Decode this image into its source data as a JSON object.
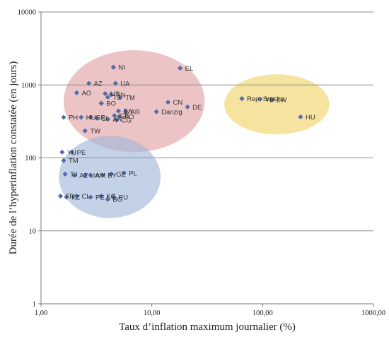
{
  "chart_data": {
    "type": "scatter",
    "title": "",
    "xlabel": "Taux d’inflation maximum journalier (%)",
    "ylabel": "Durée de l’hyperinflation constatée (en jours)",
    "x_scale": "log",
    "y_scale": "log",
    "xlim": [
      1,
      1000
    ],
    "ylim": [
      1,
      10000
    ],
    "x_ticks": [
      "1,00",
      "10,00",
      "100,00",
      "1000,00"
    ],
    "y_ticks": [
      "1",
      "10",
      "100",
      "1000",
      "10000"
    ],
    "grid": "horizontal",
    "legend": "none",
    "marker_color": "#4F6DA8",
    "clusters": [
      {
        "color": "#E0A0A3",
        "x_range": [
          1.6,
          30
        ],
        "y_range": [
          120,
          3000
        ]
      },
      {
        "color": "#F2D266",
        "x_range": [
          45,
          400
        ],
        "y_range": [
          210,
          1400
        ]
      },
      {
        "color": "#9FB6DA",
        "x_range": [
          1.45,
          12
        ],
        "y_range": [
          15,
          200
        ]
      }
    ],
    "points": [
      {
        "label": "NI",
        "x": 4.5,
        "y": 1750
      },
      {
        "label": "EL",
        "x": 18,
        "y": 1700
      },
      {
        "label": "AZ",
        "x": 2.7,
        "y": 1050
      },
      {
        "label": "UA",
        "x": 4.7,
        "y": 1050
      },
      {
        "label": "AO",
        "x": 2.1,
        "y": 780
      },
      {
        "label": "US",
        "x": 3.8,
        "y": 760
      },
      {
        "label": "SN",
        "x": 4.3,
        "y": 740
      },
      {
        "label": "TJ",
        "x": 4.0,
        "y": 680
      },
      {
        "label": "TM",
        "x": 5.2,
        "y": 670
      },
      {
        "label": "BO",
        "x": 3.5,
        "y": 560
      },
      {
        "label": "CN",
        "x": 14,
        "y": 580
      },
      {
        "label": "DE",
        "x": 21,
        "y": 500
      },
      {
        "label": "Danzig",
        "x": 11,
        "y": 430
      },
      {
        "label": "BA",
        "x": 5.0,
        "y": 440
      },
      {
        "label": "AR",
        "x": 5.8,
        "y": 430
      },
      {
        "label": "GE",
        "x": 4.6,
        "y": 380
      },
      {
        "label": "PO",
        "x": 5.1,
        "y": 370
      },
      {
        "label": "PH",
        "x": 1.6,
        "y": 360
      },
      {
        "label": "HU",
        "x": 2.3,
        "y": 360
      },
      {
        "label": "GR",
        "x": 2.8,
        "y": 360
      },
      {
        "label": "LI",
        "x": 3.2,
        "y": 350
      },
      {
        "label": "AR",
        "x": 4.0,
        "y": 340
      },
      {
        "label": "CG",
        "x": 4.8,
        "y": 330
      },
      {
        "label": "TW",
        "x": 2.5,
        "y": 235
      },
      {
        "label": "Rep. Srpska",
        "x": 65,
        "y": 650
      },
      {
        "label": "YU",
        "x": 95,
        "y": 640
      },
      {
        "label": "ZW",
        "x": 120,
        "y": 630
      },
      {
        "label": "HU",
        "x": 220,
        "y": 365
      },
      {
        "label": "YU",
        "x": 1.55,
        "y": 120
      },
      {
        "label": "PE",
        "x": 1.9,
        "y": 120
      },
      {
        "label": "TM",
        "x": 1.6,
        "y": 92
      },
      {
        "label": "TJ",
        "x": 1.65,
        "y": 60
      },
      {
        "label": "AZ",
        "x": 2.0,
        "y": 58
      },
      {
        "label": "UA",
        "x": 2.5,
        "y": 58
      },
      {
        "label": "AM",
        "x": 2.8,
        "y": 58
      },
      {
        "label": "BY",
        "x": 3.6,
        "y": 58
      },
      {
        "label": "GE",
        "x": 4.3,
        "y": 60
      },
      {
        "label": "PL",
        "x": 5.6,
        "y": 62
      },
      {
        "label": "FR",
        "x": 1.5,
        "y": 30
      },
      {
        "label": "KZ",
        "x": 1.7,
        "y": 29
      },
      {
        "label": "CL",
        "x": 2.1,
        "y": 30
      },
      {
        "label": "PE",
        "x": 2.8,
        "y": 29
      },
      {
        "label": "KG",
        "x": 3.5,
        "y": 30
      },
      {
        "label": "RU",
        "x": 4.5,
        "y": 29
      },
      {
        "label": "BG",
        "x": 4.0,
        "y": 27
      }
    ]
  }
}
